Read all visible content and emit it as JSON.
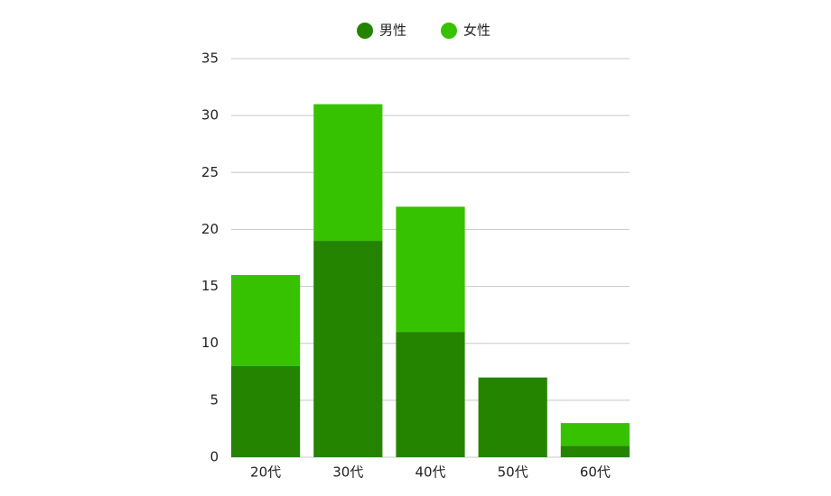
{
  "chart_data": {
    "type": "stacked-bar",
    "categories": [
      "20代",
      "30代",
      "40代",
      "50代",
      "60代"
    ],
    "series": [
      {
        "name": "男性",
        "color": "#248400",
        "values": [
          8,
          19,
          11,
          7,
          1
        ]
      },
      {
        "name": "女性",
        "color": "#37c200",
        "values": [
          8,
          12,
          11,
          0,
          2
        ]
      }
    ],
    "ylim": [
      0,
      35
    ],
    "yticks": [
      0,
      5,
      10,
      15,
      20,
      25,
      30,
      35
    ],
    "grid": true,
    "legend": "top"
  }
}
